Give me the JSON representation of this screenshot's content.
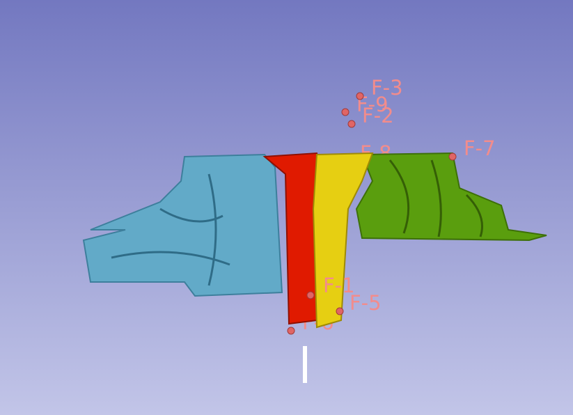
{
  "fiducials": [
    {
      "label": "F-3"
    },
    {
      "label": "F-9"
    },
    {
      "label": "F-2"
    },
    {
      "label": "F-8"
    },
    {
      "label": "F-7"
    },
    {
      "label": "F-1"
    },
    {
      "label": "F-5"
    },
    {
      "label": "F-6"
    }
  ]
}
